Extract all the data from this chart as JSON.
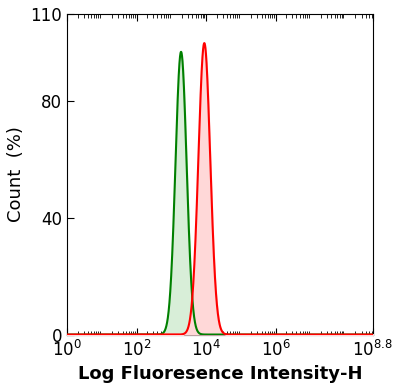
{
  "xlabel": "Log Fluoresence Intensity-H",
  "ylabel": "Count  (%)",
  "xlim_log": [
    0,
    8.8
  ],
  "ylim": [
    0,
    110
  ],
  "yticks": [
    0,
    40,
    80,
    110
  ],
  "ytick_labels": [
    "0",
    "40",
    "80",
    "110"
  ],
  "green_peak_log": 3.28,
  "green_peak_height": 97,
  "green_sigma_log": 0.16,
  "red_peak_log": 3.95,
  "red_peak_height": 100,
  "red_sigma_log": 0.17,
  "green_color": "#008000",
  "red_color": "#ff0000",
  "green_fill": "#d8eed8",
  "red_fill": "#ffd8d8",
  "background_color": "#ffffff",
  "xlabel_color": "#000000",
  "xlabel_fontsize": 13,
  "ylabel_fontsize": 13,
  "tick_fontsize": 12,
  "linewidth": 1.5
}
